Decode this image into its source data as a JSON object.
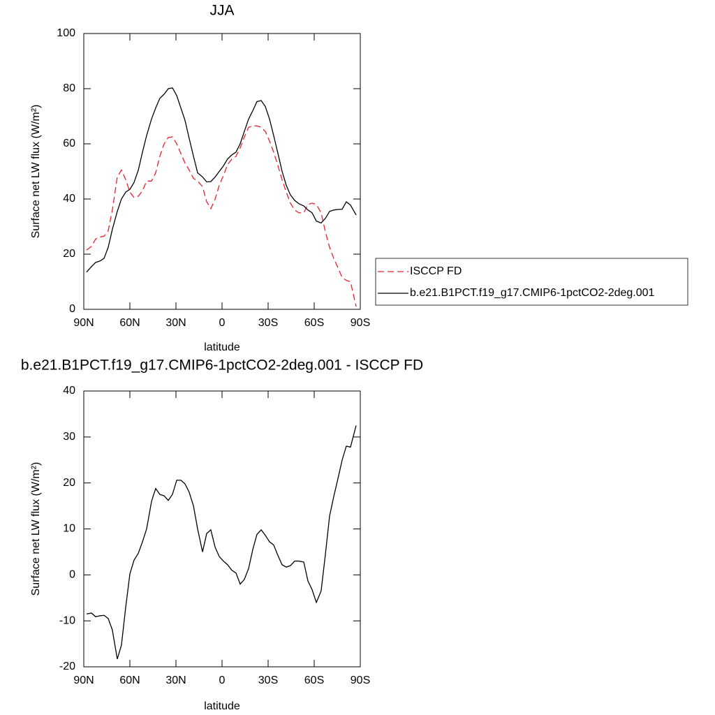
{
  "chart_data": [
    {
      "type": "line",
      "title": "JJA",
      "xlabel": "latitude",
      "ylabel": "Surface net LW flux (W/m²)",
      "xlim": [
        90,
        -90
      ],
      "ylim": [
        0,
        100
      ],
      "xticks": [
        {
          "value": 90,
          "label": "90N"
        },
        {
          "value": 60,
          "label": "60N"
        },
        {
          "value": 30,
          "label": "30N"
        },
        0,
        {
          "value": -30,
          "label": "30S"
        },
        {
          "value": -60,
          "label": "60S"
        },
        {
          "value": -90,
          "label": "90S"
        }
      ],
      "yticks": [
        0,
        20,
        40,
        60,
        80,
        100
      ],
      "legend": "right",
      "x": [
        88.2,
        85.0,
        82.3,
        79.5,
        76.8,
        74.1,
        71.4,
        68.2,
        65.5,
        62.7,
        60.0,
        57.3,
        54.5,
        51.8,
        49.1,
        45.9,
        43.2,
        40.5,
        37.7,
        35.0,
        32.3,
        29.5,
        26.8,
        24.1,
        21.4,
        18.6,
        15.9,
        12.7,
        10.0,
        7.3,
        4.5,
        1.8,
        -0.9,
        -3.6,
        -6.4,
        -9.1,
        -11.8,
        -14.5,
        -17.3,
        -20.0,
        -22.7,
        -25.5,
        -28.2,
        -30.9,
        -33.6,
        -36.4,
        -39.1,
        -41.8,
        -44.5,
        -47.3,
        -50.0,
        -53.2,
        -55.9,
        -58.6,
        -61.4,
        -64.5,
        -67.3,
        -70.0,
        -72.7,
        -75.5,
        -78.2,
        -80.9,
        -83.6,
        -87.3
      ],
      "series": [
        {
          "name": "ISCCP FD",
          "color": "#e8202a",
          "linestyle": "dashed",
          "values": [
            21.5,
            22.8,
            25.5,
            26.2,
            26.5,
            28.5,
            36,
            48,
            50.5,
            47,
            42.5,
            40.5,
            41,
            43,
            46.5,
            46.5,
            49.5,
            55.5,
            60,
            62.3,
            62.5,
            60,
            56.5,
            53,
            50.5,
            47.5,
            46.5,
            44.5,
            39,
            36.5,
            40,
            45,
            48.5,
            52.5,
            54.5,
            55.5,
            58.5,
            62.5,
            66,
            66.5,
            66.5,
            66,
            64.5,
            61,
            57,
            52,
            47,
            42.5,
            38.5,
            36,
            35,
            35,
            38,
            38.5,
            38,
            35,
            28,
            22.5,
            18.5,
            15,
            11.5,
            10.5,
            10,
            1
          ]
        },
        {
          "name": "b.e21.B1PCT.f19_g17.CMIP6-1pctCO2-2deg.001",
          "color": "#000000",
          "linestyle": "solid",
          "values": [
            13.5,
            15.5,
            17,
            17.5,
            18.5,
            22.5,
            29,
            35.5,
            40,
            42.5,
            43.5,
            46,
            50.5,
            57,
            63,
            69,
            73,
            76.5,
            78,
            80,
            80.3,
            77.5,
            73,
            68.5,
            62,
            55.5,
            49.5,
            48,
            46.2,
            46.3,
            48,
            50,
            52,
            54.5,
            56,
            57,
            60,
            64.5,
            69,
            72,
            75.3,
            75.7,
            73.5,
            69,
            63,
            56.5,
            50,
            45,
            41.5,
            39.5,
            38.3,
            37.5,
            36,
            35,
            32,
            31.3,
            33,
            35.5,
            36,
            36.2,
            36.3,
            39,
            37.8,
            34.2
          ]
        }
      ]
    },
    {
      "type": "line",
      "title": "b.e21.B1PCT.f19_g17.CMIP6-1pctCO2-2deg.001 - ISCCP FD",
      "xlabel": "latitude",
      "ylabel": "Surface net LW flux (W/m²)",
      "xlim": [
        90,
        -90
      ],
      "ylim": [
        -20,
        40
      ],
      "xticks": [
        {
          "value": 90,
          "label": "90N"
        },
        {
          "value": 60,
          "label": "60N"
        },
        {
          "value": 30,
          "label": "30N"
        },
        0,
        {
          "value": -30,
          "label": "30S"
        },
        {
          "value": -60,
          "label": "60S"
        },
        {
          "value": -90,
          "label": "90S"
        }
      ],
      "yticks": [
        -20,
        -10,
        0,
        10,
        20,
        30,
        40
      ],
      "x": [
        88.2,
        85.0,
        82.3,
        79.5,
        76.8,
        74.1,
        71.4,
        68.2,
        65.5,
        62.7,
        60.0,
        57.3,
        54.5,
        51.8,
        49.1,
        45.9,
        43.2,
        40.5,
        37.7,
        35.0,
        32.3,
        29.5,
        26.8,
        24.1,
        21.4,
        18.6,
        15.9,
        12.7,
        10.0,
        7.3,
        4.5,
        1.8,
        -0.9,
        -3.6,
        -6.4,
        -9.1,
        -11.8,
        -14.5,
        -17.3,
        -20.0,
        -22.7,
        -25.5,
        -28.2,
        -30.9,
        -33.6,
        -36.4,
        -39.1,
        -41.8,
        -44.5,
        -47.3,
        -50.0,
        -53.2,
        -55.9,
        -58.6,
        -61.4,
        -64.5,
        -67.3,
        -70.0,
        -72.7,
        -75.5,
        -78.2,
        -80.9,
        -83.6,
        -87.3
      ],
      "series": [
        {
          "color": "#000000",
          "linestyle": "solid",
          "values": [
            -8.5,
            -8.3,
            -9.1,
            -8.9,
            -8.8,
            -9.5,
            -12,
            -18.3,
            -15.3,
            -7,
            0.2,
            3.2,
            4.7,
            7.2,
            10,
            16,
            18.8,
            17.5,
            17.2,
            16.2,
            17.5,
            20.6,
            20.6,
            19.8,
            18,
            15,
            10,
            5,
            9,
            9.8,
            6,
            4,
            3,
            2.2,
            1,
            0.4,
            -2,
            -1,
            1.4,
            5.5,
            8.8,
            9.8,
            8.6,
            7.2,
            6.5,
            4.2,
            2.2,
            1.7,
            2,
            3,
            3,
            2.8,
            -1.3,
            -3.2,
            -6,
            -3.5,
            4.5,
            12.8,
            17,
            21,
            25,
            28,
            27.8,
            32.5
          ]
        }
      ]
    }
  ]
}
